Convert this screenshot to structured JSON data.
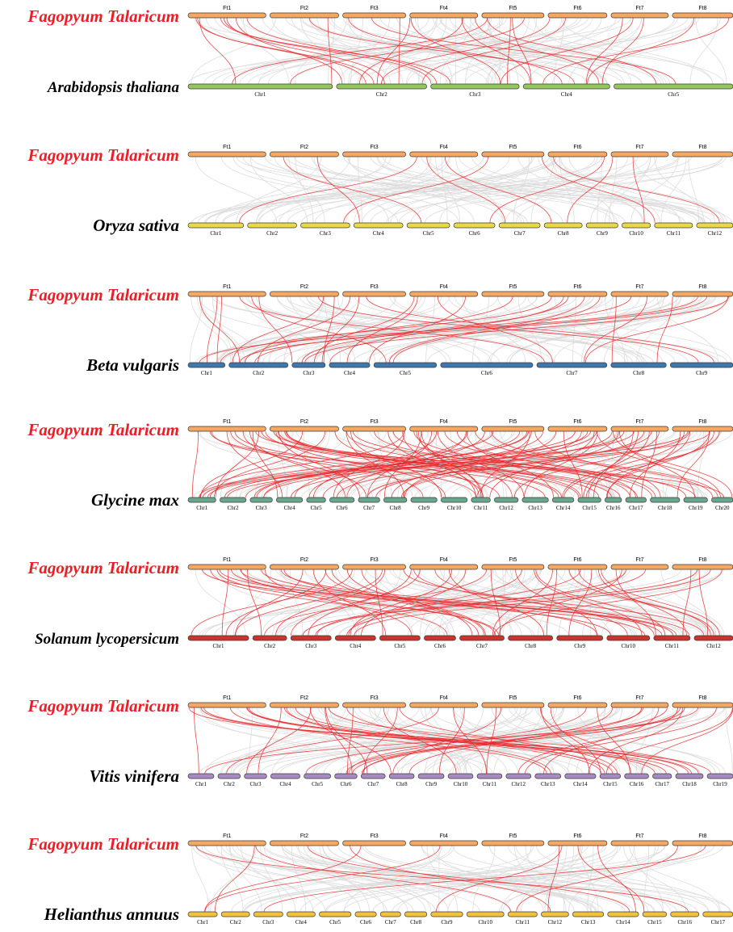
{
  "colors": {
    "top_chromosomes": "#f5a862",
    "synteny_background": "#d9d9d9",
    "synteny_highlight": "#e8282b",
    "reference_label": "#ee1c25",
    "comparison_label": "#000000"
  },
  "reference_species": "Fagopyum Talaricum",
  "reference_chromosomes": [
    "Ft1",
    "Ft2",
    "Ft3",
    "Ft4",
    "Ft5",
    "Ft6",
    "Ft7",
    "Ft8"
  ],
  "panels": [
    {
      "species": "Arabidopsis thaliana",
      "bar_color": "#93c75a",
      "chromosomes": [
        "Chr1",
        "Chr2",
        "Chr3",
        "Chr4",
        "Chr5"
      ]
    },
    {
      "species": "Oryza sativa",
      "bar_color": "#e8d84a",
      "chromosomes": [
        "Chr1",
        "Chr2",
        "Chr3",
        "Chr4",
        "Chr5",
        "Chr6",
        "Chr7",
        "Chr8",
        "Chr9",
        "Chr10",
        "Chr11",
        "Chr12"
      ]
    },
    {
      "species": "Beta vulgaris",
      "bar_color": "#3f78ad",
      "chromosomes": [
        "Chr1",
        "Chr2",
        "Chr3",
        "Chr4",
        "Chr5",
        "Chr6",
        "Chr7",
        "Chr8",
        "Chr9"
      ]
    },
    {
      "species": "Glycine max",
      "bar_color": "#6aa58e",
      "chromosomes": [
        "Chr1",
        "Chr2",
        "Chr3",
        "Chr4",
        "Chr5",
        "Chr6",
        "Chr7",
        "Chr8",
        "Chr9",
        "Chr10",
        "Chr11",
        "Chr12",
        "Chr13",
        "Chr14",
        "Chr15",
        "Chr16",
        "Chr17",
        "Chr18",
        "Chr19",
        "Chr20"
      ]
    },
    {
      "species": "Solanum lycopersicum",
      "bar_color": "#c9352b",
      "chromosomes": [
        "Chr1",
        "Chr2",
        "Chr3",
        "Chr4",
        "Chr5",
        "Chr6",
        "Chr7",
        "Chr8",
        "Chr9",
        "Chr10",
        "Chr11",
        "Chr12"
      ]
    },
    {
      "species": "Vitis vinifera",
      "bar_color": "#a68ac4",
      "chromosomes": [
        "Chr1",
        "Chr2",
        "Chr3",
        "Chr4",
        "Chr5",
        "Chr6",
        "Chr7",
        "Chr8",
        "Chr9",
        "Chr10",
        "Chr11",
        "Chr12",
        "Chr13",
        "Chr14",
        "Chr15",
        "Chr16",
        "Chr17",
        "Chr18",
        "Chr19"
      ]
    },
    {
      "species": "Helianthus annuus",
      "bar_color": "#f2c23a",
      "chromosomes": [
        "Chr1",
        "Chr2",
        "Chr3",
        "Chr4",
        "Chr5",
        "Chr6",
        "Chr7",
        "Chr8",
        "Chr9",
        "Chr10",
        "Chr11",
        "Chr12",
        "Chr13",
        "Chr14",
        "Chr15",
        "Chr16",
        "Chr17"
      ]
    }
  ]
}
